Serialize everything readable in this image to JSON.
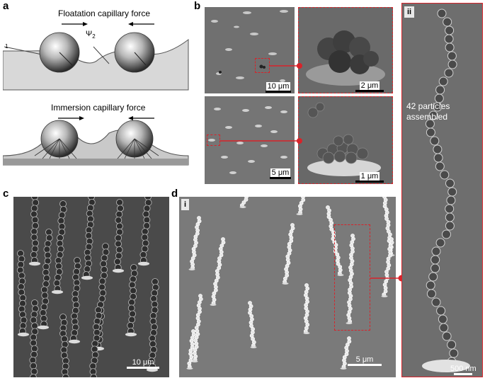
{
  "panel_a": {
    "label": "a",
    "top_title": "Floatation capillary force",
    "psi_label": "Ψ",
    "psi_sub": "2",
    "left_edge_label": "1",
    "bottom_title": "Immersion capillary force"
  },
  "panel_b": {
    "label": "b",
    "scale_top_left": "10 μm",
    "scale_top_right": "2 μm",
    "scale_bottom_left": "5 μm",
    "scale_bottom_right": "1 μm"
  },
  "panel_c": {
    "label": "c",
    "scale": "10 μm"
  },
  "panel_d": {
    "label": "d",
    "sub_i": "i",
    "scale": "5 μm"
  },
  "panel_ii": {
    "sub": "ii",
    "annotation_line1": "42 particles",
    "annotation_line2": "assembled",
    "scale": "500 nm"
  },
  "colors": {
    "highlight": "#d8232a",
    "sem_bg": "#6e6e6e"
  }
}
